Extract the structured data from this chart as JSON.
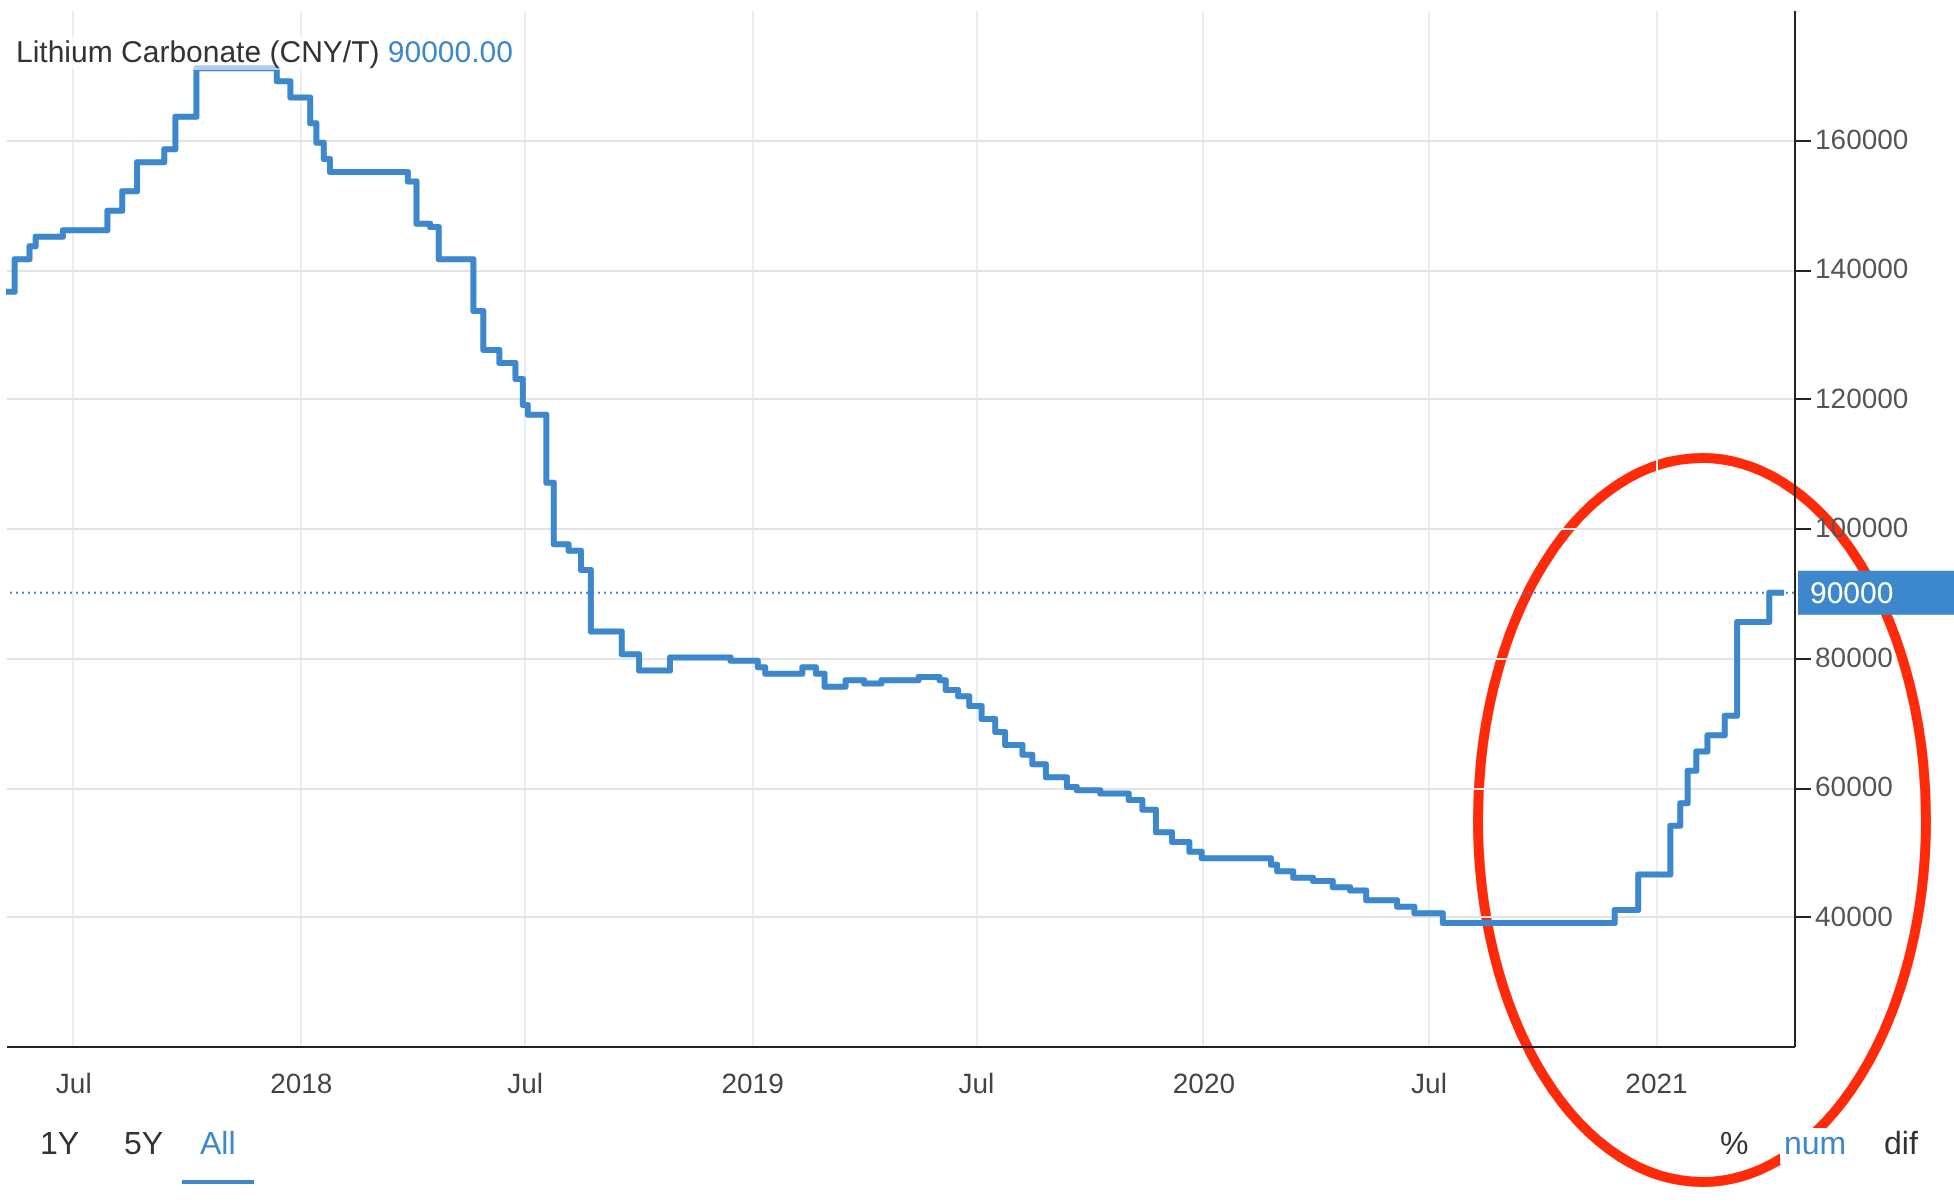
{
  "chart_data": {
    "type": "step",
    "title": "Lithium Carbonate (CNY/T)",
    "subtitle": "90000.00",
    "x": [
      "2017-05-08",
      "2017-05-15",
      "2017-05-27",
      "2017-06-01",
      "2017-06-23",
      "2017-07-29",
      "2017-08-10",
      "2017-08-22",
      "2017-09-13",
      "2017-09-22",
      "2017-10-09",
      "2017-12-13",
      "2017-12-24",
      "2018-01-09",
      "2018-01-14",
      "2018-01-20",
      "2018-01-25",
      "2018-03-29",
      "2018-04-05",
      "2018-04-16",
      "2018-04-23",
      "2018-05-21",
      "2018-05-29",
      "2018-06-11",
      "2018-06-24",
      "2018-06-30",
      "2018-07-04",
      "2018-07-19",
      "2018-07-25",
      "2018-08-06",
      "2018-08-16",
      "2018-08-24",
      "2018-09-18",
      "2018-10-02",
      "2018-10-27",
      "2018-12-15",
      "2019-01-06",
      "2019-01-12",
      "2019-02-11",
      "2019-02-22",
      "2019-03-01",
      "2019-03-18",
      "2019-04-02",
      "2019-04-16",
      "2019-05-16",
      "2019-06-02",
      "2019-06-07",
      "2019-06-17",
      "2019-06-26",
      "2019-07-06",
      "2019-07-17",
      "2019-07-25",
      "2019-08-08",
      "2019-08-16",
      "2019-08-27",
      "2019-09-13",
      "2019-09-21",
      "2019-10-10",
      "2019-11-02",
      "2019-11-13",
      "2019-11-24",
      "2019-12-07",
      "2019-12-21",
      "2019-12-31",
      "2020-02-25",
      "2020-03-01",
      "2020-03-14",
      "2020-03-30",
      "2020-04-15",
      "2020-04-29",
      "2020-05-12",
      "2020-06-06",
      "2020-06-20",
      "2020-07-13",
      "2020-11-29",
      "2020-12-18",
      "2021-01-13",
      "2021-01-21",
      "2021-01-27",
      "2021-02-03",
      "2021-02-12",
      "2021-02-26",
      "2021-03-08",
      "2021-04-03",
      "2021-04-15"
    ],
    "series": [
      {
        "color": "#3d87cc",
        "values": [
          136500,
          141500,
          143500,
          145000,
          146000,
          149000,
          152000,
          156500,
          158500,
          163500,
          171000,
          169000,
          166500,
          162500,
          159500,
          157000,
          155000,
          153500,
          147000,
          146500,
          141500,
          133500,
          127500,
          125500,
          123000,
          119000,
          117500,
          107000,
          97500,
          96500,
          93500,
          84000,
          80500,
          78000,
          80000,
          79500,
          78500,
          77500,
          78500,
          77500,
          75500,
          76500,
          76000,
          76500,
          77000,
          76500,
          75000,
          74000,
          72500,
          70500,
          68500,
          66500,
          65000,
          63500,
          61500,
          60000,
          59500,
          59000,
          58000,
          56500,
          53000,
          51500,
          50000,
          49000,
          48000,
          47000,
          46000,
          45500,
          44500,
          44000,
          42500,
          41500,
          40500,
          39000,
          41000,
          46500,
          54000,
          57500,
          62500,
          65500,
          68000,
          71000,
          85500,
          90000,
          90000
        ]
      }
    ],
    "xlim": [
      "2017-05-08",
      "2021-04-23"
    ],
    "ylim": [
      20000,
      180000
    ],
    "xticks": [
      {
        "value": "2017-07-01",
        "label": "Jul"
      },
      {
        "value": "2018-01-01",
        "label": "2018"
      },
      {
        "value": "2018-07-01",
        "label": "Jul"
      },
      {
        "value": "2019-01-01",
        "label": "2019"
      },
      {
        "value": "2019-07-01",
        "label": "Jul"
      },
      {
        "value": "2020-01-01",
        "label": "2020"
      },
      {
        "value": "2020-07-01",
        "label": "Jul"
      },
      {
        "value": "2021-01-01",
        "label": "2021"
      }
    ],
    "yticks": [
      40000,
      60000,
      80000,
      100000,
      120000,
      140000,
      160000
    ],
    "grid": true,
    "ref_lines": [
      {
        "axis": "y",
        "value": 90000,
        "label": "90000",
        "color": "#3d87cc",
        "line_style": "dotted"
      }
    ],
    "annotations": [
      "1Y",
      "5Y",
      "All",
      "%",
      "num",
      "dif"
    ]
  }
}
